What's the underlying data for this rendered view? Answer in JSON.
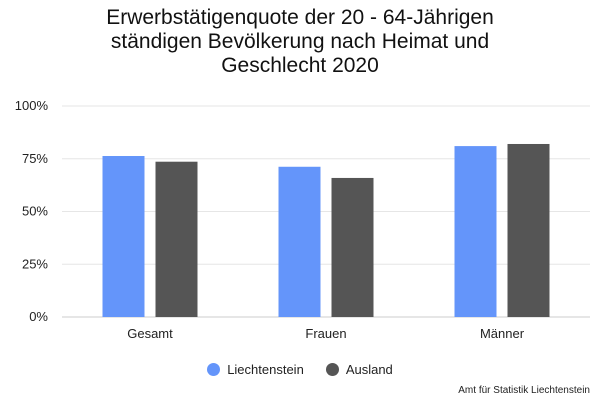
{
  "chart_data": {
    "type": "bar",
    "title_lines": [
      "Erwerbstätigenquote der 20 - 64-Jährigen",
      "ständigen Bevölkerung nach Heimat und",
      "Geschlecht 2020"
    ],
    "categories": [
      "Gesamt",
      "Frauen",
      "Männer"
    ],
    "series": [
      {
        "name": "Liechtenstein",
        "color": "#6495FA",
        "values": [
          76.3,
          71.2,
          81.0
        ]
      },
      {
        "name": "Ausland",
        "color": "#555555",
        "values": [
          73.6,
          65.9,
          82.0
        ]
      }
    ],
    "yticks": [
      "0%",
      "25%",
      "50%",
      "75%",
      "100%"
    ],
    "ylim": [
      0,
      100
    ],
    "grid": true,
    "legend_position": "bottom"
  },
  "source": "Amt für Statistik Liechtenstein"
}
